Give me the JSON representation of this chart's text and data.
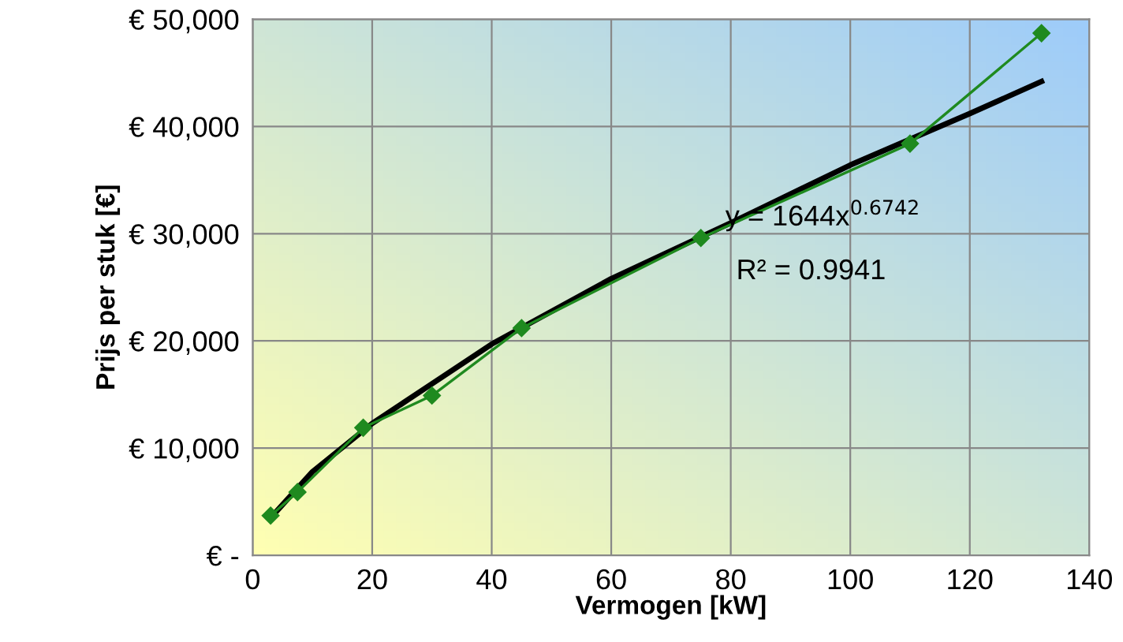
{
  "chart_data": {
    "type": "line",
    "xlabel": "Vermogen [kW]",
    "ylabel": "Prijs per stuk [€]",
    "series": [
      {
        "color": "#1f8a1f",
        "marker": "diamond",
        "x": [
          3,
          7.5,
          18.5,
          30,
          45,
          75,
          110,
          132
        ],
        "values": [
          3700,
          5900,
          11900,
          14900,
          21200,
          29600,
          38400,
          48700
        ]
      },
      {
        "color": "#000000",
        "marker": "none",
        "x": [
          3,
          10,
          20,
          30,
          40,
          60,
          80,
          100,
          120,
          132
        ],
        "values": [
          3500,
          7800,
          12300,
          16000,
          19700,
          25800,
          31000,
          36400,
          41200,
          44200
        ]
      }
    ],
    "xlim": [
      0,
      140
    ],
    "xticks": [
      0,
      20,
      40,
      60,
      80,
      100,
      120,
      140
    ],
    "ylim": [
      0,
      50000
    ],
    "yticks": [
      {
        "value": 0,
        "label": "€ -"
      },
      {
        "value": 10000,
        "label": "€ 10,000"
      },
      {
        "value": 20000,
        "label": "€ 20,000"
      },
      {
        "value": 30000,
        "label": "€ 30,000"
      },
      {
        "value": 40000,
        "label": "€ 40,000"
      },
      {
        "value": 50000,
        "label": "€ 50,000"
      }
    ],
    "grid": true,
    "annotations": [
      "y = 1644x$^{0.6742}$",
      "R² = 0.9941"
    ]
  }
}
